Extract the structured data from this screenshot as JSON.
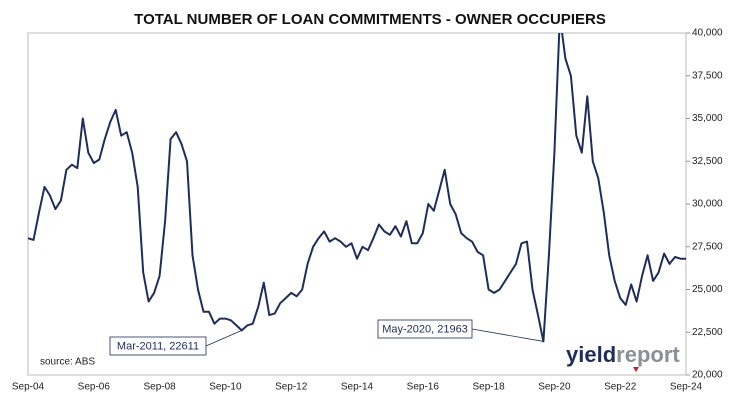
{
  "chart_data": {
    "type": "line",
    "title": "TOTAL NUMBER OF LOAN COMMITMENTS - OWNER OCCUPIERS",
    "source": "source: ABS",
    "logo": [
      "yield",
      "report"
    ],
    "annotations": [
      "Mar-2011, 22611",
      "May-2020, 21963"
    ],
    "categories": [
      "Sep-04",
      null,
      null,
      null,
      null,
      null,
      null,
      null,
      null,
      null,
      null,
      null,
      "Sep-06",
      null,
      null,
      null,
      null,
      null,
      null,
      null,
      null,
      null,
      null,
      null,
      "Sep-08",
      null,
      null,
      null,
      null,
      null,
      null,
      null,
      null,
      null,
      null,
      null,
      "Sep-10",
      null,
      null,
      null,
      null,
      null,
      null,
      null,
      null,
      null,
      null,
      null,
      "Sep-12",
      null,
      null,
      null,
      null,
      null,
      null,
      null,
      null,
      null,
      null,
      null,
      "Sep-14",
      null,
      null,
      null,
      null,
      null,
      null,
      null,
      null,
      null,
      null,
      null,
      "Sep-16",
      null,
      null,
      null,
      null,
      null,
      null,
      null,
      null,
      null,
      null,
      null,
      "Sep-18",
      null,
      null,
      null,
      null,
      null,
      null,
      null,
      null,
      null,
      null,
      null,
      "Sep-20",
      null,
      null,
      null,
      null,
      null,
      null,
      null,
      null,
      null,
      null,
      null,
      "Sep-22",
      null,
      null,
      null,
      null,
      null,
      null,
      null,
      null,
      null,
      null,
      null,
      "Sep-24"
    ],
    "series": [
      {
        "color": "#1f2d5c",
        "values": [
          28000,
          27900,
          29500,
          31000,
          30500,
          29700,
          30200,
          32000,
          32300,
          32100,
          35000,
          33000,
          32400,
          32600,
          33800,
          34800,
          35500,
          34000,
          34200,
          33000,
          31000,
          26000,
          24300,
          24800,
          25800,
          29000,
          33800,
          34200,
          33500,
          32500,
          27000,
          25000,
          23700,
          23700,
          23000,
          23300,
          23300,
          23200,
          22900,
          22611,
          22900,
          23000,
          24000,
          25400,
          23500,
          23600,
          24200,
          24500,
          24800,
          24600,
          25000,
          26500,
          27500,
          28000,
          28400,
          27800,
          28000,
          27800,
          27500,
          27700,
          26800,
          27500,
          27300,
          28000,
          28800,
          28400,
          28200,
          28700,
          28100,
          29000,
          27700,
          27700,
          28300,
          30000,
          29600,
          30800,
          32000,
          30000,
          29400,
          28300,
          28000,
          27800,
          27200,
          27000,
          25000,
          24800,
          25000,
          25500,
          26000,
          26500,
          27700,
          27800,
          25000,
          23500,
          21963,
          27000,
          33000,
          41000,
          38500,
          37500,
          34000,
          33000,
          36300,
          32500,
          31500,
          29500,
          27000,
          25500,
          24500,
          24100,
          25300,
          24300,
          25800,
          27000,
          25500,
          26000,
          27100,
          26500,
          26900,
          26800,
          26800
        ]
      }
    ],
    "ylim": [
      20000,
      40000
    ],
    "yticks": [
      {
        "value": 20000,
        "label": "20,000"
      },
      {
        "value": 22500,
        "label": "22,500"
      },
      {
        "value": 25000,
        "label": "25,000"
      },
      {
        "value": 27500,
        "label": "27,500"
      },
      {
        "value": 30000,
        "label": "30,000"
      },
      {
        "value": 32500,
        "label": "32,500"
      },
      {
        "value": 35000,
        "label": "35,000"
      },
      {
        "value": 37500,
        "label": "37,500"
      },
      {
        "value": 40000,
        "label": "40,000"
      }
    ],
    "grid": false
  }
}
